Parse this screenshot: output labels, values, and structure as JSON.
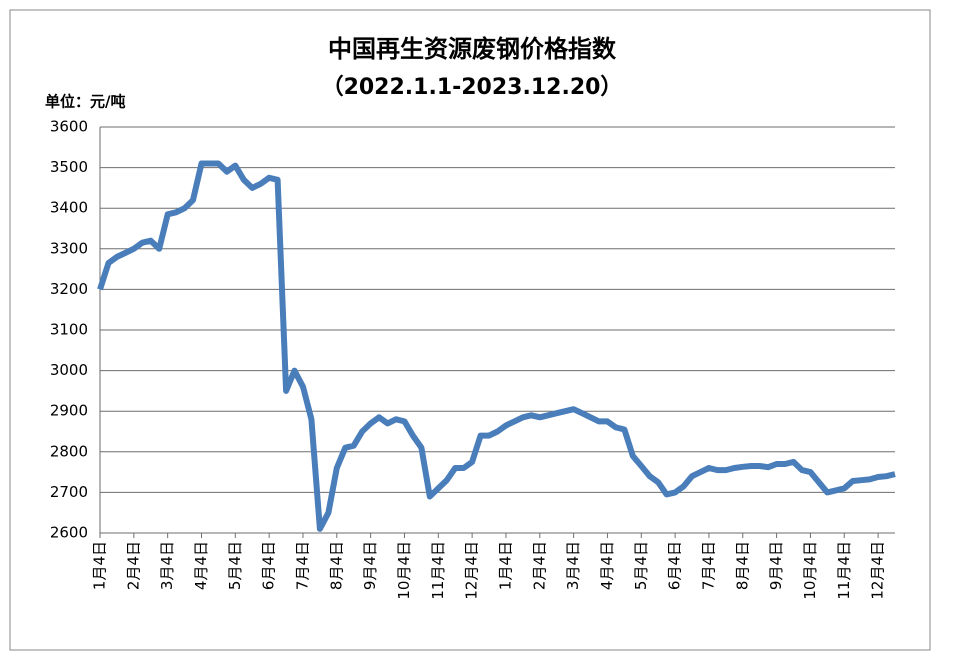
{
  "chart_data": {
    "type": "line",
    "title": "中国再生资源废钢价格指数",
    "subtitle": "（2022.1.1-2023.12.20）",
    "y_label": "单位：元/吨",
    "categories": [
      "1月4日",
      null,
      null,
      null,
      "2月4日",
      null,
      null,
      null,
      "3月4日",
      null,
      null,
      null,
      "4月4日",
      null,
      null,
      null,
      "5月4日",
      null,
      null,
      null,
      "6月4日",
      null,
      null,
      null,
      "7月4日",
      null,
      null,
      null,
      "8月4日",
      null,
      null,
      null,
      "9月4日",
      null,
      null,
      null,
      "10月4日",
      null,
      null,
      null,
      "11月4日",
      null,
      null,
      null,
      "12月4日",
      null,
      null,
      null,
      "1月4日",
      null,
      null,
      null,
      "2月4日",
      null,
      null,
      null,
      "3月4日",
      null,
      null,
      null,
      "4月4日",
      null,
      null,
      null,
      "5月4日",
      null,
      null,
      null,
      "6月4日",
      null,
      null,
      null,
      "7月4日",
      null,
      null,
      null,
      "8月4日",
      null,
      null,
      null,
      "9月4日",
      null,
      null,
      null,
      "10月4日",
      null,
      null,
      null,
      "11月4日",
      null,
      null,
      null,
      "12月4日",
      null,
      null
    ],
    "values": [
      3200,
      3265,
      3280,
      3290,
      3300,
      3315,
      3320,
      3300,
      3385,
      3390,
      3400,
      3420,
      3510,
      3510,
      3510,
      3490,
      3505,
      3470,
      3450,
      3460,
      3475,
      3470,
      2950,
      3000,
      2960,
      2880,
      2610,
      2650,
      2760,
      2810,
      2815,
      2850,
      2870,
      2885,
      2870,
      2880,
      2875,
      2840,
      2810,
      2690,
      2710,
      2730,
      2760,
      2760,
      2775,
      2840,
      2840,
      2850,
      2865,
      2875,
      2885,
      2890,
      2885,
      2890,
      2895,
      2900,
      2905,
      2895,
      2885,
      2875,
      2875,
      2860,
      2855,
      2790,
      2765,
      2740,
      2725,
      2695,
      2700,
      2715,
      2740,
      2750,
      2760,
      2755,
      2755,
      2760,
      2763,
      2765,
      2765,
      2762,
      2770,
      2770,
      2775,
      2755,
      2750,
      2725,
      2700,
      2705,
      2710,
      2728,
      2730,
      2732,
      2738,
      2740,
      2745
    ],
    "color": "#4a7ebb",
    "ylim": [
      2600,
      3600
    ],
    "yticks": [
      2600,
      2700,
      2800,
      2900,
      3000,
      3100,
      3200,
      3300,
      3400,
      3500,
      3600
    ],
    "grid": true
  }
}
